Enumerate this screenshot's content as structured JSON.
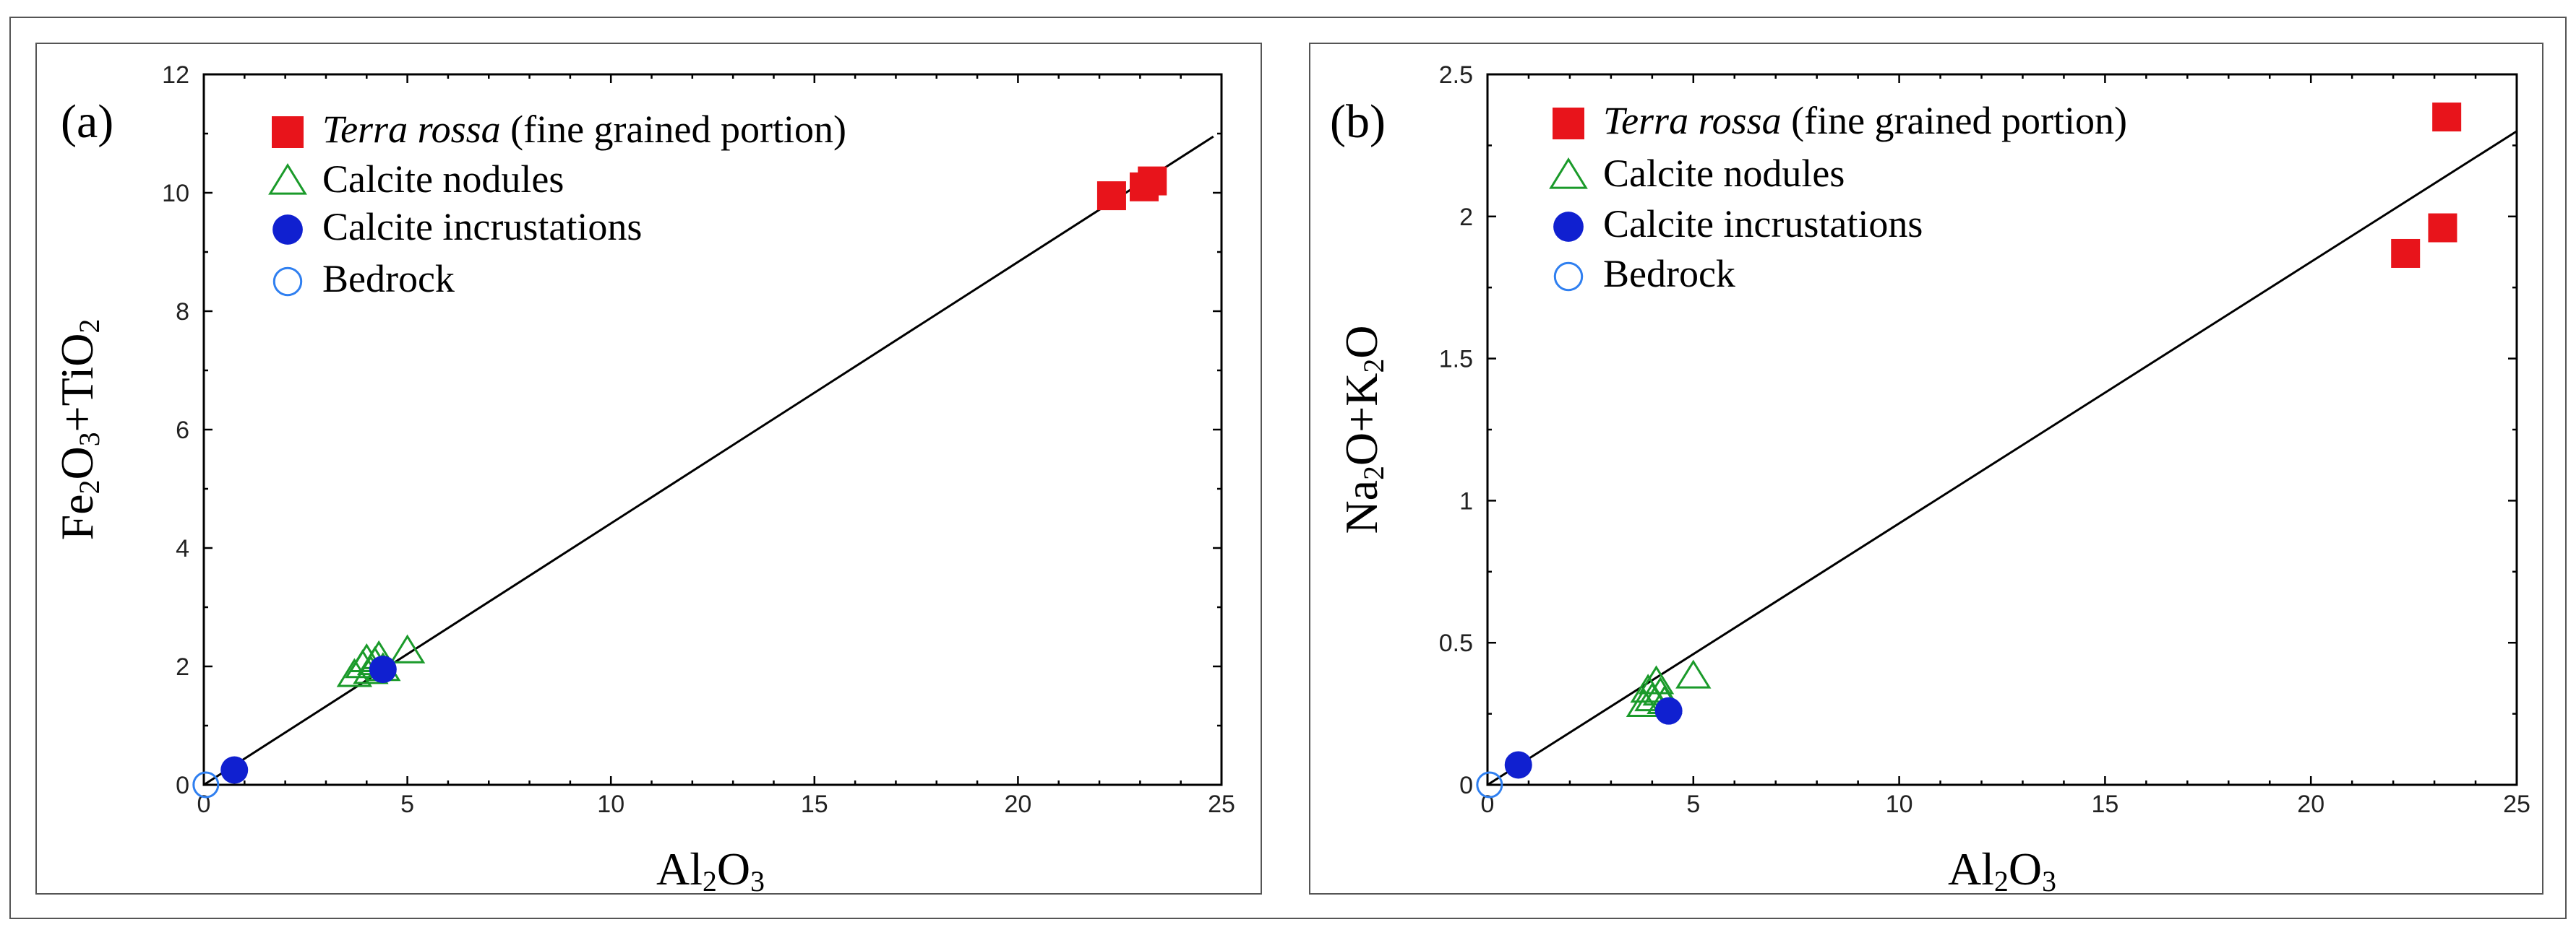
{
  "colors": {
    "terra_rossa": "#e8141b",
    "nodules": "#1a9a2a",
    "incrustations": "#1020d0",
    "bedrock": "#2f7ff0"
  },
  "legend": [
    {
      "key": "terra_rossa",
      "marker": "square",
      "label_italic": "Terra rossa",
      "label_rest": " (fine grained portion)"
    },
    {
      "key": "nodules",
      "marker": "triangle",
      "label_italic": "",
      "label_rest": "Calcite nodules"
    },
    {
      "key": "incrustations",
      "marker": "filled-circle",
      "label_italic": "",
      "label_rest": "Calcite incrustations"
    },
    {
      "key": "bedrock",
      "marker": "open-circle",
      "label_italic": "",
      "label_rest": "Bedrock"
    }
  ],
  "chart_data": [
    {
      "type": "scatter",
      "panel_label": "(a)",
      "xlabel": {
        "main1": "Al",
        "sub1": "2",
        "main2": "O",
        "sub2": "3"
      },
      "ylabel": {
        "p1": "Fe",
        "s1": "2",
        "p2": "O",
        "s2": "3",
        "p3": "+TiO",
        "s3": "2"
      },
      "xlim": [
        0,
        25
      ],
      "ylim": [
        0,
        12
      ],
      "xticks": [
        "0",
        "5",
        "10",
        "15",
        "20",
        "25"
      ],
      "yticks": [
        "0",
        "2",
        "4",
        "6",
        "8",
        "10",
        "12"
      ],
      "trendline": [
        [
          0,
          0
        ],
        [
          24.8,
          10.95
        ]
      ],
      "series": [
        {
          "name": "Terra rossa (fine grained portion)",
          "key": "terra_rossa",
          "marker": "square",
          "x": [
            22.3,
            23.1,
            23.3
          ],
          "y": [
            9.95,
            10.1,
            10.2
          ]
        },
        {
          "name": "Calcite nodules",
          "key": "nodules",
          "marker": "triangle",
          "x": [
            3.7,
            3.9,
            4.0,
            4.1,
            4.2,
            4.3,
            4.4,
            5.0
          ],
          "y": [
            1.85,
            2.0,
            2.1,
            1.9,
            2.05,
            2.15,
            1.95,
            2.25
          ]
        },
        {
          "name": "Calcite incrustations",
          "key": "incrustations",
          "marker": "filled-circle",
          "x": [
            0.75,
            4.4
          ],
          "y": [
            0.25,
            1.95
          ]
        },
        {
          "name": "Bedrock",
          "key": "bedrock",
          "marker": "open-circle",
          "x": [
            0.05
          ],
          "y": [
            0.0
          ]
        }
      ]
    },
    {
      "type": "scatter",
      "panel_label": "(b)",
      "xlabel": {
        "main1": "Al",
        "sub1": "2",
        "main2": "O",
        "sub2": "3"
      },
      "ylabel": {
        "p1": "Na",
        "s1": "2",
        "p2": "O+K",
        "s2": "2",
        "p3": "O",
        "s3": ""
      },
      "xlim": [
        0,
        25
      ],
      "ylim": [
        0,
        2.5
      ],
      "xticks": [
        "0",
        "5",
        "10",
        "15",
        "20",
        "25"
      ],
      "yticks": [
        "0",
        "0.5",
        "1",
        "1.5",
        "2",
        "2.5"
      ],
      "trendline": [
        [
          0,
          0
        ],
        [
          25,
          2.3
        ]
      ],
      "series": [
        {
          "name": "Terra rossa (fine grained portion)",
          "key": "terra_rossa",
          "marker": "square",
          "x": [
            22.3,
            23.2,
            23.3
          ],
          "y": [
            1.87,
            1.96,
            2.35
          ]
        },
        {
          "name": "Calcite nodules",
          "key": "nodules",
          "marker": "triangle",
          "x": [
            3.8,
            3.9,
            4.0,
            4.1,
            4.2,
            4.3,
            5.0
          ],
          "y": [
            0.28,
            0.33,
            0.3,
            0.36,
            0.32,
            0.29,
            0.38
          ]
        },
        {
          "name": "Calcite incrustations",
          "key": "incrustations",
          "marker": "filled-circle",
          "x": [
            0.75,
            4.4
          ],
          "y": [
            0.07,
            0.26
          ]
        },
        {
          "name": "Bedrock",
          "key": "bedrock",
          "marker": "open-circle",
          "x": [
            0.05
          ],
          "y": [
            0.0
          ]
        }
      ]
    }
  ]
}
